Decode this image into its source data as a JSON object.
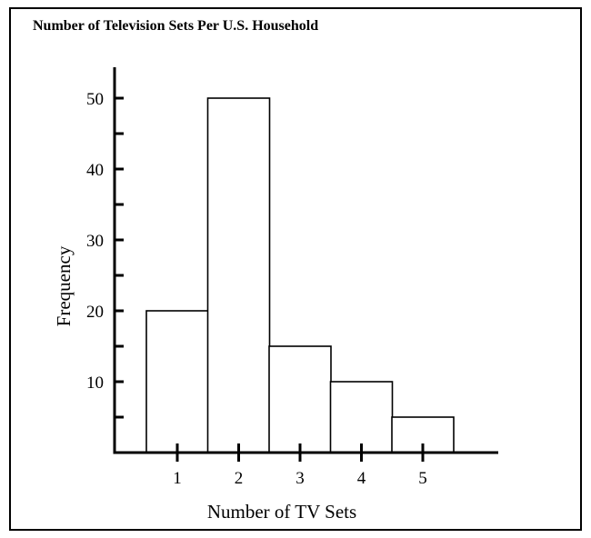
{
  "chart_data": {
    "type": "bar",
    "title": "Number of Television Sets Per U.S. Household",
    "xlabel": "Number of TV Sets",
    "ylabel": "Frequency",
    "categories": [
      "1",
      "2",
      "3",
      "4",
      "5"
    ],
    "values": [
      20,
      50,
      15,
      10,
      5
    ],
    "yticks": [
      "10",
      "20",
      "30",
      "40",
      "50"
    ],
    "ylim": [
      0,
      50
    ],
    "grid": false,
    "bar_fill": "#ffffff",
    "bar_stroke": "#000000"
  }
}
